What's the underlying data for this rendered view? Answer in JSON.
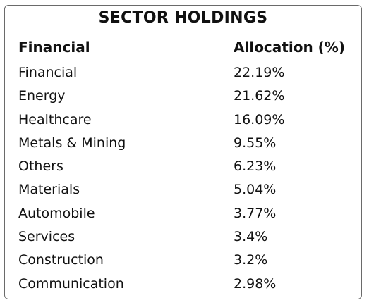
{
  "title": "SECTOR HOLDINGS",
  "columns": {
    "name": "Financial",
    "value": "Allocation (%)"
  },
  "rows": [
    {
      "name": "Financial",
      "value": "22.19%"
    },
    {
      "name": "Energy",
      "value": "21.62%"
    },
    {
      "name": "Healthcare",
      "value": "16.09%"
    },
    {
      "name": "Metals & Mining",
      "value": "9.55%"
    },
    {
      "name": "Others",
      "value": "6.23%"
    },
    {
      "name": "Materials",
      "value": "5.04%"
    },
    {
      "name": "Automobile",
      "value": "3.77%"
    },
    {
      "name": "Services",
      "value": "3.4%"
    },
    {
      "name": "Construction",
      "value": "3.2%"
    },
    {
      "name": "Communication",
      "value": "2.98%"
    }
  ]
}
